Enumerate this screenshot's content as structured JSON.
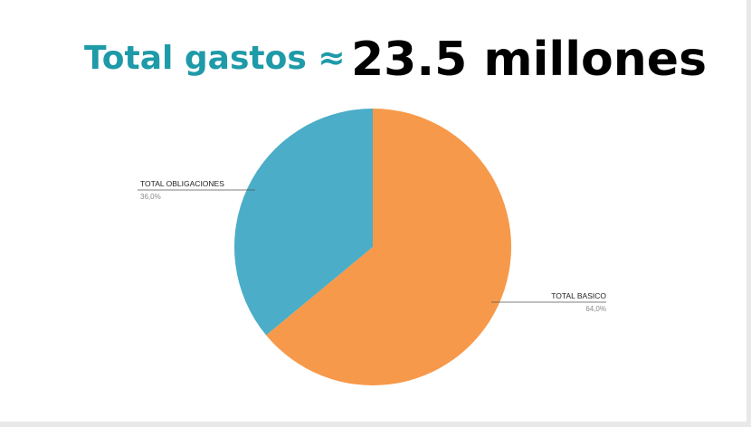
{
  "header": {
    "label": "Total gastos ≈",
    "value": "23.5 millones"
  },
  "colors": {
    "title_accent": "#1e9aa8",
    "slice_basico": "#f7994a",
    "slice_obligaciones": "#4badc7"
  },
  "chart_data": {
    "type": "pie",
    "title": "",
    "slices": [
      {
        "label": "TOTAL BASICO",
        "value": 64.0,
        "display": "64,0%",
        "color": "#f7994a"
      },
      {
        "label": "TOTAL OBLIGACIONES",
        "value": 36.0,
        "display": "36,0%",
        "color": "#4badc7"
      }
    ],
    "start_angle": "12 o'clock",
    "direction": "clockwise",
    "legend": "none",
    "label_style": "leader lines"
  }
}
